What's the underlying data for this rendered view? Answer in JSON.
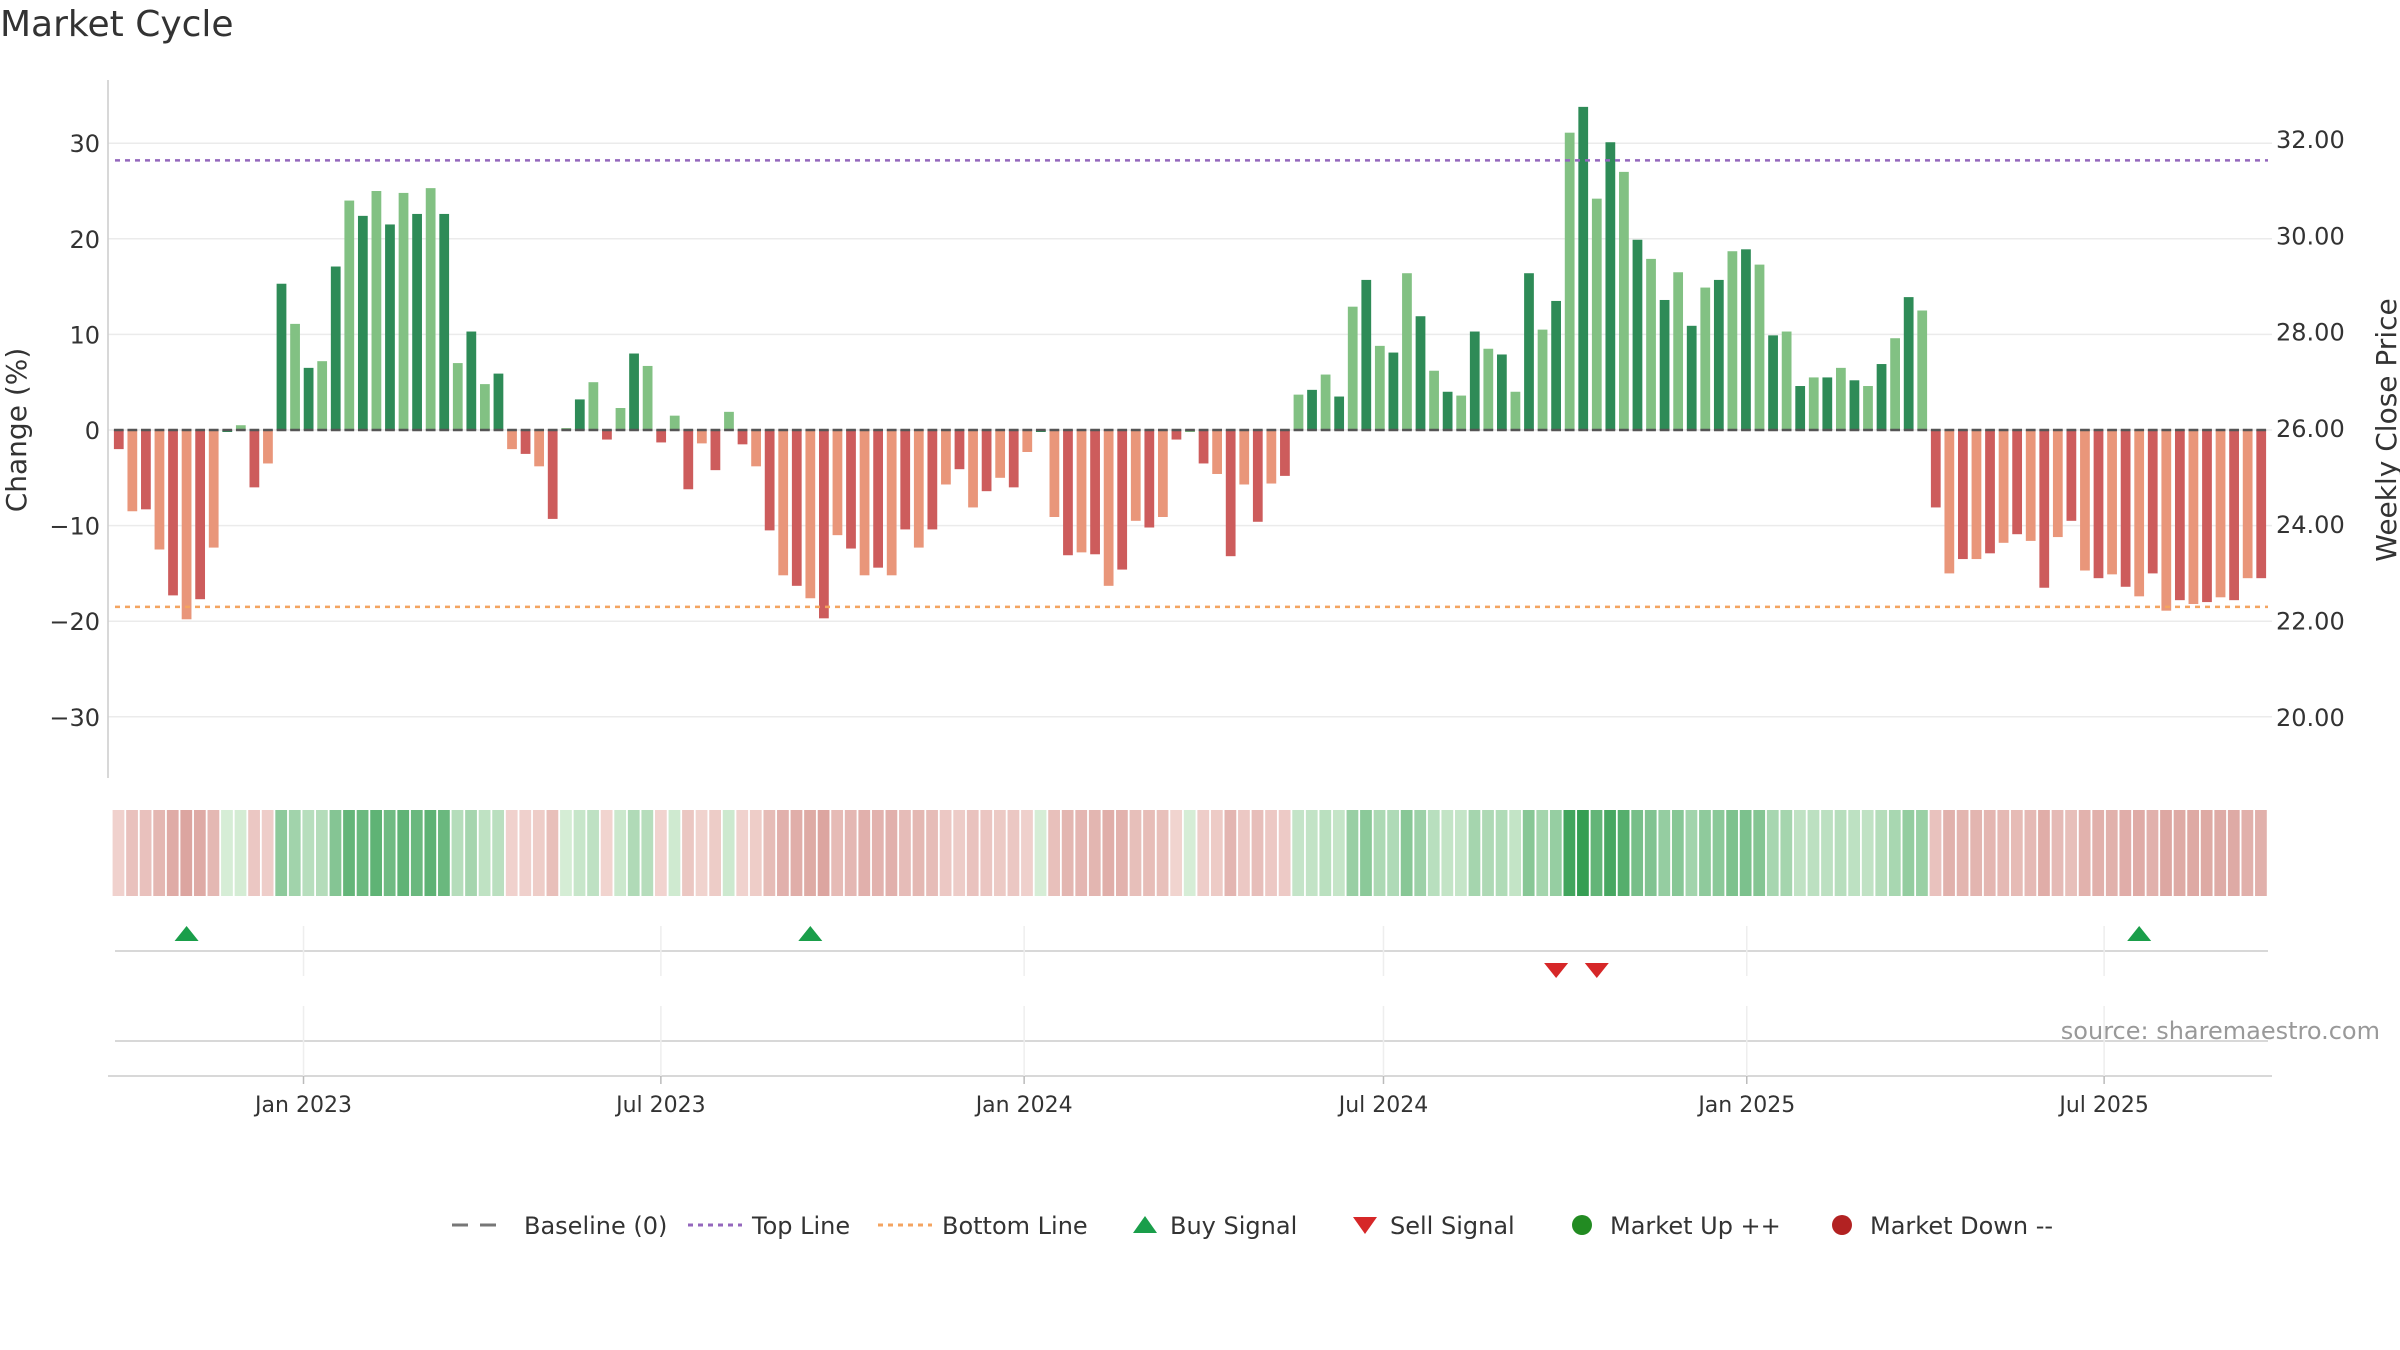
{
  "chart_data": {
    "type": "bar",
    "title": "Market Cycle",
    "ylabel": "Change (%)",
    "y2label": "Weekly Close Price",
    "ylim": [
      -36.5,
      36.5
    ],
    "yticks": [
      30,
      20,
      10,
      0,
      -10,
      -20,
      -30
    ],
    "yticklabels": [
      "30",
      "20",
      "10",
      "0",
      "−10",
      "−20",
      "−30"
    ],
    "y2ticklabels": [
      "32.00",
      "30.00",
      "28.00",
      "26.00",
      "24.00",
      "22.00",
      "20.00"
    ],
    "x_start": "2022-09-26",
    "x_end": "2025-09-22",
    "xticks": [
      {
        "date": "2023-01-01",
        "label": "Jan 2023"
      },
      {
        "date": "2023-07-01",
        "label": "Jul 2023"
      },
      {
        "date": "2024-01-01",
        "label": "Jan 2024"
      },
      {
        "date": "2024-07-01",
        "label": "Jul 2024"
      },
      {
        "date": "2025-01-01",
        "label": "Jan 2025"
      },
      {
        "date": "2025-07-01",
        "label": "Jul 2025"
      }
    ],
    "top_line": 28.2,
    "bottom_line": -18.5,
    "baseline": 0,
    "values": [
      -2,
      -8.5,
      -8.3,
      -12.5,
      -17.3,
      -19.8,
      -17.7,
      -12.3,
      0,
      0.5,
      -6,
      -3.5,
      15.3,
      11.1,
      6.5,
      7.2,
      17.1,
      24,
      22.4,
      25,
      21.5,
      24.8,
      22.6,
      25.3,
      22.6,
      7,
      10.3,
      4.8,
      5.9,
      -2,
      -2.5,
      -3.8,
      -9.3,
      0.2,
      3.2,
      5,
      -1,
      2.3,
      8,
      6.7,
      -1.3,
      1.5,
      -6.2,
      -1.4,
      -4.2,
      1.9,
      -1.5,
      -3.8,
      -10.5,
      -15.2,
      -16.3,
      -17.6,
      -19.7,
      -11,
      -12.4,
      -15.2,
      -14.4,
      -15.2,
      -10.4,
      -12.3,
      -10.4,
      -5.7,
      -4.1,
      -8.1,
      -6.4,
      -5,
      -6,
      -2.3,
      0,
      -9.1,
      -13.1,
      -12.8,
      -13,
      -16.3,
      -14.6,
      -9.5,
      -10.2,
      -9.1,
      -1,
      0,
      -3.5,
      -4.6,
      -13.2,
      -5.7,
      -9.6,
      -5.6,
      -4.8,
      3.7,
      4.2,
      5.8,
      3.5,
      12.9,
      15.7,
      8.8,
      8.1,
      16.4,
      11.9,
      6.2,
      4,
      3.6,
      10.3,
      8.5,
      7.9,
      4,
      16.4,
      10.5,
      13.5,
      31.1,
      33.8,
      24.2,
      30.1,
      27,
      19.9,
      17.9,
      13.6,
      16.5,
      10.9,
      14.9,
      15.7,
      18.7,
      18.9,
      17.3,
      9.9,
      10.3,
      4.6,
      5.5,
      5.5,
      6.5,
      5.2,
      4.6,
      6.9,
      9.6,
      13.9,
      12.5,
      -8.1,
      -15,
      -13.5,
      -13.5,
      -12.9,
      -11.8,
      -10.9,
      -11.6,
      -16.5,
      -11.2,
      -9.5,
      -14.7,
      -15.5,
      -15.1,
      -16.4,
      -17.4,
      -15,
      -18.9,
      -17.8,
      -18.2,
      -18,
      -17.5,
      -17.8,
      -15.5,
      -15.5
    ],
    "buy_signals": [
      5,
      51,
      149
    ],
    "sell_signals": [
      106,
      109
    ],
    "series_colors": {
      "up_strong": "#2e8b57",
      "up_weak": "#82c183",
      "down_strong": "#cd5c5c",
      "down_weak": "#e9967a",
      "top_line": "#9467bd",
      "bottom_line": "#f4a460",
      "buy": "#1a9e4a",
      "sell": "#d62728",
      "market_up": "#228b22",
      "market_down": "#b22222"
    },
    "legend_position": "bottom-center",
    "legend": [
      {
        "label": "Baseline (0)",
        "kind": "dash"
      },
      {
        "label": "Top Line",
        "kind": "dot-purple"
      },
      {
        "label": "Bottom Line",
        "kind": "dot-orange"
      },
      {
        "label": "Buy Signal",
        "kind": "tri-up"
      },
      {
        "label": "Sell Signal",
        "kind": "tri-down"
      },
      {
        "label": "Market Up ++",
        "kind": "circle-green"
      },
      {
        "label": "Market Down --",
        "kind": "circle-red"
      }
    ]
  },
  "source_text": "source: sharemaestro.com"
}
